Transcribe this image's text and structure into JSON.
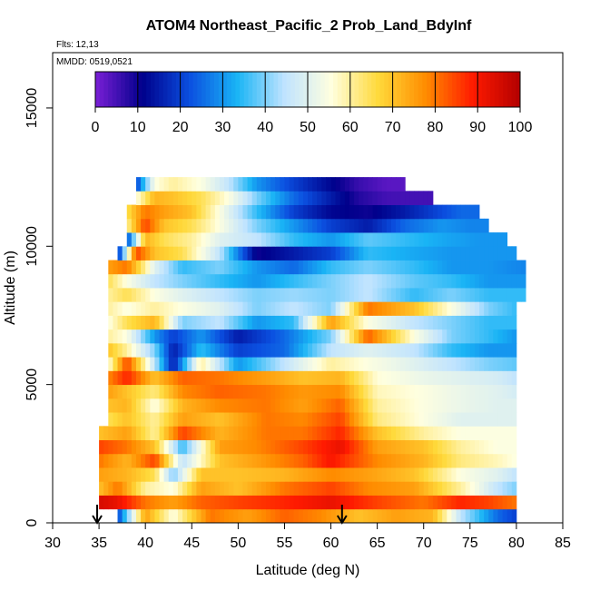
{
  "chart_data": {
    "type": "heatmap",
    "title": "ATOM4 Northeast_Pacific_2 Prob_Land_BdyInf",
    "flights_label": "Flts: 12,13",
    "dates_label": "MMDD: 0519,0521",
    "xlabel": "Latitude (deg N)",
    "ylabel": "Altitude (m)",
    "xlim": [
      30,
      85
    ],
    "ylim": [
      0,
      17000
    ],
    "x_ticks": [
      "30",
      "35",
      "40",
      "45",
      "50",
      "55",
      "60",
      "65",
      "70",
      "75",
      "80",
      "85"
    ],
    "y_ticks": [
      "0",
      "5000",
      "10000",
      "15000"
    ],
    "colorbar": {
      "ticks": [
        "0",
        "10",
        "20",
        "30",
        "40",
        "50",
        "60",
        "70",
        "80",
        "90",
        "100"
      ],
      "range": [
        0,
        100
      ],
      "stops": [
        "#7a1fd6",
        "#00008b",
        "#0b4fe0",
        "#19b4f5",
        "#bfe3ff",
        "#ffffdf",
        "#ffd93a",
        "#ff8c00",
        "#ff1a00",
        "#b30000"
      ]
    },
    "arrows_at_latitude": [
      34.8,
      61.2
    ],
    "layers": [
      {
        "alt": 250,
        "lat": [
          37,
          40,
          43,
          47,
          51,
          55,
          59,
          63,
          67,
          71,
          74,
          78,
          80
        ],
        "prob": [
          20,
          75,
          55,
          80,
          75,
          82,
          78,
          70,
          75,
          72,
          45,
          25,
          20
        ]
      },
      {
        "alt": 750,
        "lat": [
          35,
          37,
          40,
          43,
          46,
          50,
          55,
          60,
          65,
          70,
          74,
          77,
          80
        ],
        "prob": [
          95,
          92,
          80,
          75,
          82,
          85,
          88,
          92,
          85,
          80,
          88,
          85,
          80
        ]
      },
      {
        "alt": 1250,
        "lat": [
          35,
          37,
          40,
          43,
          46,
          50,
          55,
          60,
          64,
          69,
          74,
          78,
          80
        ],
        "prob": [
          70,
          80,
          60,
          55,
          75,
          70,
          80,
          85,
          78,
          75,
          60,
          45,
          40
        ]
      },
      {
        "alt": 1750,
        "lat": [
          35,
          38,
          41,
          43,
          46,
          50,
          55,
          60,
          64,
          69,
          74,
          78,
          80
        ],
        "prob": [
          75,
          72,
          65,
          40,
          70,
          70,
          72,
          78,
          75,
          70,
          55,
          50,
          45
        ]
      },
      {
        "alt": 2250,
        "lat": [
          35,
          38,
          41,
          44,
          48,
          52,
          57,
          60,
          65,
          70,
          74,
          78,
          80
        ],
        "prob": [
          80,
          72,
          85,
          45,
          70,
          75,
          82,
          90,
          78,
          72,
          62,
          58,
          55
        ]
      },
      {
        "alt": 2750,
        "lat": [
          35,
          38,
          41,
          44,
          48,
          52,
          57,
          61,
          65,
          70,
          74,
          78,
          80
        ],
        "prob": [
          85,
          80,
          70,
          35,
          75,
          78,
          85,
          92,
          75,
          70,
          60,
          55,
          55
        ]
      },
      {
        "alt": 3250,
        "lat": [
          35,
          38,
          41,
          44,
          48,
          53,
          57,
          61,
          65,
          70,
          74,
          78,
          80
        ],
        "prob": [
          70,
          75,
          60,
          85,
          72,
          80,
          80,
          88,
          70,
          60,
          55,
          55,
          55
        ]
      },
      {
        "alt": 3750,
        "lat": [
          36,
          38,
          41,
          44,
          48,
          53,
          57,
          61,
          65,
          70,
          74,
          78,
          80
        ],
        "prob": [
          65,
          70,
          60,
          75,
          70,
          80,
          78,
          85,
          62,
          55,
          50,
          50,
          50
        ]
      },
      {
        "alt": 4250,
        "lat": [
          36,
          38,
          41,
          44,
          48,
          53,
          57,
          61,
          65,
          70,
          74,
          78,
          80
        ],
        "prob": [
          70,
          72,
          55,
          72,
          78,
          80,
          75,
          82,
          60,
          55,
          52,
          50,
          50
        ]
      },
      {
        "alt": 4750,
        "lat": [
          36,
          38,
          41,
          44,
          48,
          53,
          57,
          61,
          65,
          70,
          74,
          78,
          80
        ],
        "prob": [
          75,
          70,
          62,
          78,
          82,
          80,
          76,
          78,
          58,
          55,
          52,
          50,
          48
        ]
      },
      {
        "alt": 5250,
        "lat": [
          36,
          38,
          41,
          44,
          48,
          53,
          57,
          61,
          65,
          70,
          74,
          78,
          80
        ],
        "prob": [
          78,
          88,
          70,
          82,
          80,
          75,
          70,
          72,
          56,
          52,
          50,
          48,
          45
        ]
      },
      {
        "alt": 5750,
        "lat": [
          36,
          38,
          41,
          43,
          46,
          50,
          55,
          60,
          64,
          69,
          73,
          77,
          80
        ],
        "prob": [
          55,
          85,
          45,
          15,
          60,
          30,
          45,
          60,
          55,
          50,
          45,
          40,
          38
        ]
      },
      {
        "alt": 6250,
        "lat": [
          36,
          38,
          41,
          43,
          46,
          50,
          55,
          60,
          64,
          69,
          73,
          77,
          80
        ],
        "prob": [
          70,
          60,
          40,
          15,
          35,
          20,
          25,
          45,
          50,
          45,
          35,
          30,
          30
        ]
      },
      {
        "alt": 6750,
        "lat": [
          36,
          38,
          41,
          43,
          46,
          50,
          55,
          60,
          64,
          69,
          73,
          77,
          80
        ],
        "prob": [
          60,
          55,
          30,
          20,
          30,
          15,
          25,
          40,
          82,
          55,
          40,
          35,
          30
        ]
      },
      {
        "alt": 7250,
        "lat": [
          36,
          38,
          41,
          44,
          48,
          52,
          56,
          60,
          64,
          69,
          73,
          77,
          80
        ],
        "prob": [
          55,
          65,
          72,
          40,
          45,
          30,
          35,
          75,
          55,
          45,
          40,
          35,
          35
        ]
      },
      {
        "alt": 7750,
        "lat": [
          36,
          38,
          41,
          44,
          48,
          52,
          56,
          60,
          64,
          69,
          73,
          77,
          80
        ],
        "prob": [
          60,
          55,
          60,
          55,
          50,
          40,
          45,
          40,
          80,
          70,
          55,
          40,
          35
        ]
      },
      {
        "alt": 8250,
        "lat": [
          36,
          38,
          41,
          44,
          48,
          52,
          56,
          60,
          64,
          69,
          73,
          77,
          81
        ],
        "prob": [
          60,
          65,
          55,
          50,
          45,
          40,
          42,
          40,
          45,
          35,
          40,
          35,
          35
        ]
      },
      {
        "alt": 8750,
        "lat": [
          36,
          38,
          41,
          44,
          48,
          52,
          56,
          60,
          64,
          69,
          73,
          77,
          81
        ],
        "prob": [
          65,
          55,
          45,
          40,
          35,
          30,
          35,
          40,
          45,
          38,
          35,
          30,
          30
        ]
      },
      {
        "alt": 9250,
        "lat": [
          36,
          38,
          41,
          44,
          48,
          52,
          56,
          60,
          64,
          69,
          73,
          77,
          81
        ],
        "prob": [
          75,
          80,
          50,
          35,
          40,
          30,
          25,
          35,
          40,
          35,
          30,
          30,
          28
        ]
      },
      {
        "alt": 9750,
        "lat": [
          37,
          39,
          41,
          44,
          48,
          52,
          56,
          60,
          64,
          69,
          73,
          77,
          80
        ],
        "prob": [
          15,
          85,
          70,
          65,
          45,
          10,
          15,
          20,
          35,
          32,
          30,
          30,
          30
        ]
      },
      {
        "alt": 10250,
        "lat": [
          38,
          40,
          42,
          45,
          48,
          52,
          56,
          60,
          64,
          68,
          72,
          76,
          79
        ],
        "prob": [
          20,
          72,
          65,
          60,
          50,
          45,
          35,
          30,
          38,
          35,
          32,
          30,
          30
        ]
      },
      {
        "alt": 10750,
        "lat": [
          38,
          40,
          42,
          45,
          48,
          52,
          56,
          60,
          64,
          68,
          72,
          75,
          77
        ],
        "prob": [
          60,
          85,
          70,
          65,
          55,
          40,
          30,
          20,
          15,
          25,
          30,
          28,
          28
        ]
      },
      {
        "alt": 11250,
        "lat": [
          38,
          40,
          42,
          45,
          48,
          52,
          56,
          60,
          64,
          68,
          71,
          74,
          76
        ],
        "prob": [
          65,
          80,
          75,
          70,
          55,
          35,
          20,
          12,
          10,
          15,
          20,
          25,
          25
        ]
      },
      {
        "alt": 11750,
        "lat": [
          39,
          41,
          43,
          46,
          49,
          52,
          56,
          60,
          63,
          66,
          68,
          70,
          71
        ],
        "prob": [
          55,
          72,
          70,
          65,
          55,
          40,
          25,
          15,
          8,
          5,
          5,
          5,
          5
        ]
      },
      {
        "alt": 12250,
        "lat": [
          39,
          41,
          43,
          46,
          49,
          52,
          56,
          60,
          63,
          66,
          68
        ],
        "prob": [
          20,
          55,
          60,
          55,
          45,
          30,
          20,
          12,
          6,
          3,
          3
        ]
      }
    ]
  }
}
